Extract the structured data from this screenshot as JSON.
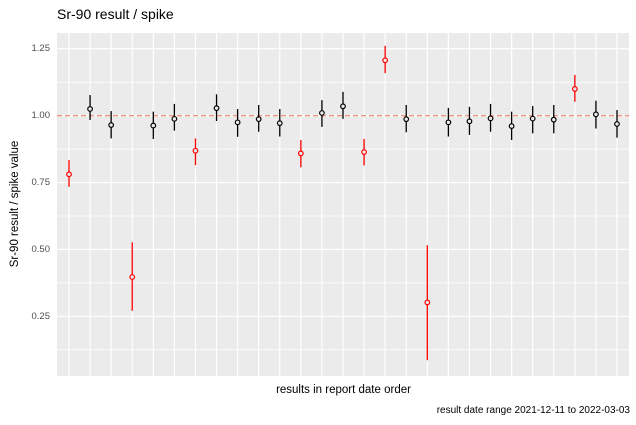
{
  "chart_data": {
    "type": "scatter",
    "subtype": "pointrange-with-error-bars",
    "title": "Sr-90 result / spike",
    "ylabel": "Sr-90 result / spike value",
    "xlabel": "results in report date order",
    "caption": "result date range 2021-12-11 to 2022-03-03",
    "legend": "none",
    "grid": "on",
    "x_axis": {
      "discrete": true,
      "tick_labels_shown": false,
      "n_positions": 27
    },
    "ylim": [
      0.027,
      1.309
    ],
    "yticks": [
      1.25,
      1.0,
      0.75,
      0.5,
      0.25
    ],
    "ytick_labels": [
      "1.25",
      "1.00",
      "0.75",
      "0.50",
      "0.25"
    ],
    "yticks_minor": [
      1.125,
      0.875,
      0.625,
      0.375,
      0.125
    ],
    "refline": {
      "y": 1.0,
      "style": "dashed",
      "color": "#F0876E"
    },
    "points": [
      {
        "i": 1,
        "value": 0.781,
        "lo": 0.734,
        "hi": 0.834,
        "flagged": true
      },
      {
        "i": 2,
        "value": 1.025,
        "lo": 0.984,
        "hi": 1.077,
        "flagged": false
      },
      {
        "i": 3,
        "value": 0.965,
        "lo": 0.915,
        "hi": 1.017,
        "flagged": false
      },
      {
        "i": 4,
        "value": 0.397,
        "lo": 0.271,
        "hi": 0.527,
        "flagged": true
      },
      {
        "i": 5,
        "value": 0.963,
        "lo": 0.913,
        "hi": 1.015,
        "flagged": false
      },
      {
        "i": 6,
        "value": 0.988,
        "lo": 0.944,
        "hi": 1.044,
        "flagged": false
      },
      {
        "i": 7,
        "value": 0.869,
        "lo": 0.815,
        "hi": 0.915,
        "flagged": true
      },
      {
        "i": 8,
        "value": 1.028,
        "lo": 0.98,
        "hi": 1.08,
        "flagged": false
      },
      {
        "i": 9,
        "value": 0.975,
        "lo": 0.921,
        "hi": 1.025,
        "flagged": false
      },
      {
        "i": 10,
        "value": 0.987,
        "lo": 0.94,
        "hi": 1.04,
        "flagged": false
      },
      {
        "i": 11,
        "value": 0.972,
        "lo": 0.922,
        "hi": 1.025,
        "flagged": false
      },
      {
        "i": 12,
        "value": 0.859,
        "lo": 0.807,
        "hi": 0.909,
        "flagged": true
      },
      {
        "i": 13,
        "value": 1.01,
        "lo": 0.958,
        "hi": 1.058,
        "flagged": false
      },
      {
        "i": 14,
        "value": 1.035,
        "lo": 0.988,
        "hi": 1.089,
        "flagged": false
      },
      {
        "i": 15,
        "value": 0.864,
        "lo": 0.814,
        "hi": 0.913,
        "flagged": true
      },
      {
        "i": 16,
        "value": 1.207,
        "lo": 1.159,
        "hi": 1.261,
        "flagged": true
      },
      {
        "i": 17,
        "value": 0.987,
        "lo": 0.938,
        "hi": 1.04,
        "flagged": false
      },
      {
        "i": 18,
        "value": 0.302,
        "lo": 0.086,
        "hi": 0.516,
        "flagged": true
      },
      {
        "i": 19,
        "value": 0.975,
        "lo": 0.922,
        "hi": 1.029,
        "flagged": false
      },
      {
        "i": 20,
        "value": 0.979,
        "lo": 0.928,
        "hi": 1.033,
        "flagged": false
      },
      {
        "i": 21,
        "value": 0.99,
        "lo": 0.94,
        "hi": 1.044,
        "flagged": false
      },
      {
        "i": 22,
        "value": 0.961,
        "lo": 0.909,
        "hi": 1.015,
        "flagged": false
      },
      {
        "i": 23,
        "value": 0.989,
        "lo": 0.934,
        "hi": 1.036,
        "flagged": false
      },
      {
        "i": 24,
        "value": 0.985,
        "lo": 0.934,
        "hi": 1.04,
        "flagged": false
      },
      {
        "i": 25,
        "value": 1.1,
        "lo": 1.052,
        "hi": 1.152,
        "flagged": true
      },
      {
        "i": 26,
        "value": 1.005,
        "lo": 0.952,
        "hi": 1.056,
        "flagged": false
      },
      {
        "i": 27,
        "value": 0.969,
        "lo": 0.918,
        "hi": 1.021,
        "flagged": false
      }
    ],
    "colors": {
      "normal_point": "#000000",
      "flagged_point": "#FF0000",
      "refline": "#F0876E",
      "panel_background": "#EBEBEB",
      "gridline": "#FFFFFF",
      "axis_tick_text": "#4D4D4D",
      "title_text": "#000000"
    }
  }
}
